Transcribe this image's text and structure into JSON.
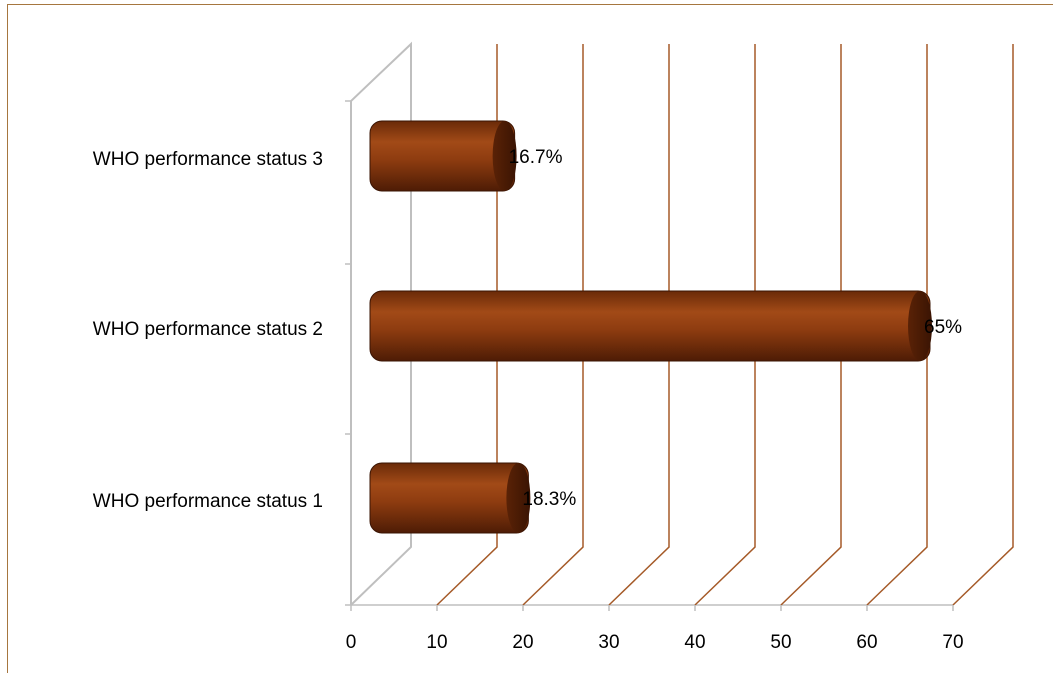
{
  "chart_data": {
    "type": "bar",
    "orientation": "horizontal",
    "style": "3d-cylinder",
    "categories": [
      "WHO performance status 1",
      "WHO performance status 2",
      "WHO performance status 3"
    ],
    "values": [
      18.3,
      65,
      16.7
    ],
    "data_labels": [
      "18.3%",
      "65%",
      "16.7%"
    ],
    "x_ticks": [
      "0",
      "10",
      "20",
      "30",
      "40",
      "50",
      "60",
      "70"
    ],
    "xlim": [
      0,
      70
    ],
    "xlabel": "",
    "ylabel": "",
    "title": "",
    "grid": true,
    "legend": "none",
    "colors": {
      "bar": "#8b3a10",
      "bar_light": "#b5561e",
      "bar_dark": "#4a1a05",
      "gridline": "#a55a28",
      "wall": "#bfbfbf",
      "frame": "#a6763f"
    }
  }
}
